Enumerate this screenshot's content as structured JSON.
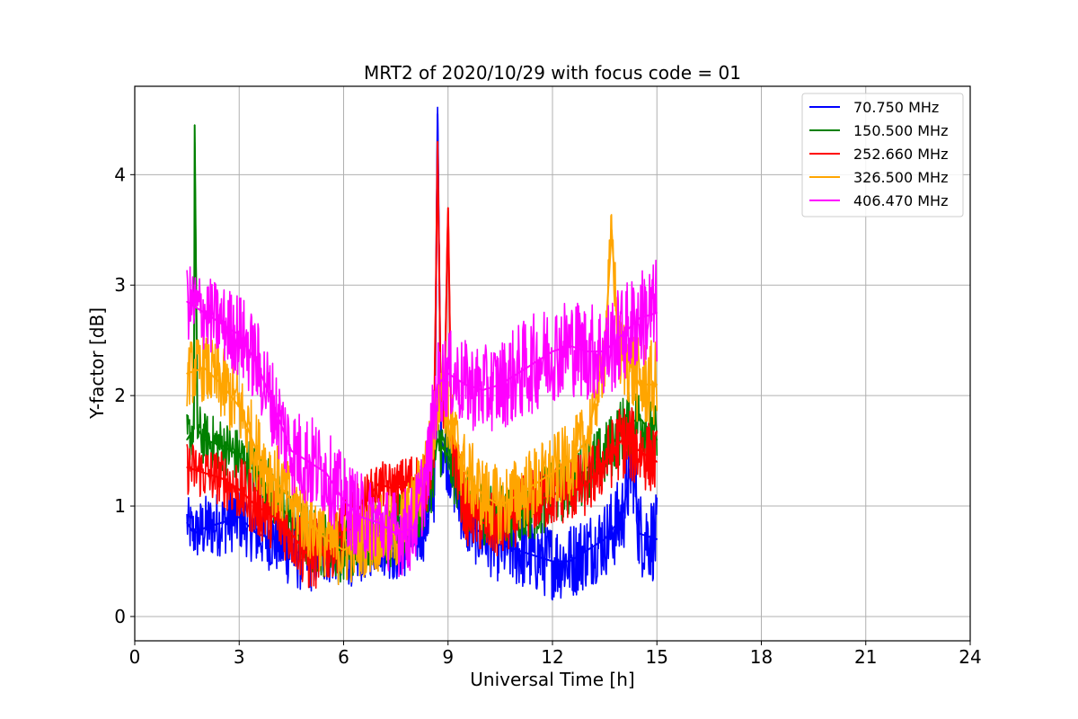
{
  "chart_data": {
    "type": "line",
    "title": "MRT2 of 2020/10/29 with focus code = 01",
    "xlabel": "Universal Time [h]",
    "ylabel": "Y-factor [dB]",
    "xlim": [
      0,
      24
    ],
    "ylim": [
      -0.22,
      4.8
    ],
    "xticks": [
      0,
      3,
      6,
      9,
      12,
      15,
      18,
      21,
      24
    ],
    "yticks": [
      0,
      1,
      2,
      3,
      4
    ],
    "grid": true,
    "legend_position": "top-right",
    "series": [
      {
        "name": "  70.750 MHz",
        "color": "#0000ff",
        "x": [
          1.5,
          1.7,
          2.0,
          2.5,
          3.0,
          3.5,
          4.0,
          4.5,
          5.0,
          5.5,
          6.0,
          6.5,
          7.0,
          7.5,
          8.0,
          8.3,
          8.6,
          8.7,
          8.8,
          9.0,
          9.5,
          10.0,
          10.5,
          11.0,
          11.5,
          12.0,
          12.5,
          13.0,
          13.5,
          14.0,
          14.3,
          14.5,
          15.0
        ],
        "y": [
          0.85,
          0.75,
          0.8,
          0.85,
          0.9,
          0.75,
          0.7,
          0.6,
          0.55,
          0.6,
          0.55,
          0.6,
          0.7,
          0.6,
          0.7,
          0.8,
          1.1,
          4.55,
          1.6,
          1.4,
          0.85,
          0.75,
          0.65,
          0.6,
          0.55,
          0.5,
          0.5,
          0.6,
          0.7,
          0.9,
          1.45,
          0.75,
          0.7
        ],
        "spread": [
          0.25,
          0.25,
          0.3,
          0.3,
          0.3,
          0.3,
          0.3,
          0.35,
          0.35,
          0.3,
          0.3,
          0.3,
          0.3,
          0.3,
          0.3,
          0.3,
          0.3,
          0.1,
          0.3,
          0.3,
          0.3,
          0.35,
          0.35,
          0.35,
          0.35,
          0.35,
          0.35,
          0.35,
          0.35,
          0.4,
          0.45,
          0.4,
          0.4
        ]
      },
      {
        "name": "150.500 MHz",
        "color": "#008000",
        "x": [
          1.5,
          1.7,
          1.72,
          1.8,
          2.0,
          2.5,
          3.0,
          3.5,
          4.0,
          4.5,
          5.0,
          5.5,
          6.0,
          6.5,
          7.0,
          7.5,
          8.0,
          8.5,
          8.7,
          9.0,
          9.5,
          10.0,
          10.5,
          11.0,
          11.5,
          12.0,
          12.5,
          13.0,
          13.5,
          14.0,
          14.5,
          15.0
        ],
        "y": [
          1.6,
          1.7,
          4.45,
          1.7,
          1.6,
          1.55,
          1.45,
          1.3,
          1.1,
          0.85,
          0.7,
          0.65,
          0.6,
          0.7,
          0.8,
          0.75,
          0.85,
          1.2,
          1.6,
          1.45,
          1.05,
          0.95,
          0.9,
          0.95,
          1.0,
          1.1,
          1.2,
          1.35,
          1.45,
          1.7,
          1.8,
          1.6
        ],
        "spread": [
          0.25,
          0.25,
          0.1,
          0.25,
          0.25,
          0.25,
          0.25,
          0.25,
          0.3,
          0.3,
          0.3,
          0.3,
          0.3,
          0.3,
          0.3,
          0.35,
          0.3,
          0.3,
          0.3,
          0.3,
          0.3,
          0.3,
          0.3,
          0.3,
          0.3,
          0.3,
          0.3,
          0.3,
          0.3,
          0.3,
          0.3,
          0.3
        ]
      },
      {
        "name": "252.660 MHz",
        "color": "#ff0000",
        "x": [
          1.5,
          2.0,
          2.5,
          3.0,
          3.5,
          4.0,
          4.5,
          5.0,
          5.5,
          6.0,
          6.5,
          7.0,
          7.5,
          8.0,
          8.4,
          8.6,
          8.7,
          8.8,
          8.9,
          9.0,
          9.1,
          9.5,
          10.0,
          10.5,
          11.0,
          11.5,
          12.0,
          12.5,
          13.0,
          13.5,
          14.0,
          14.5,
          15.0
        ],
        "y": [
          1.35,
          1.3,
          1.25,
          1.15,
          1.0,
          0.9,
          0.75,
          0.55,
          0.6,
          0.75,
          1.0,
          1.2,
          1.15,
          1.25,
          1.2,
          1.6,
          4.3,
          1.8,
          2.0,
          3.7,
          1.6,
          0.95,
          0.85,
          0.8,
          0.95,
          1.05,
          1.1,
          1.15,
          1.2,
          1.4,
          1.6,
          1.5,
          1.4
        ],
        "spread": [
          0.25,
          0.25,
          0.25,
          0.3,
          0.3,
          0.3,
          0.3,
          0.35,
          0.3,
          0.3,
          0.25,
          0.2,
          0.25,
          0.25,
          0.25,
          0.3,
          0.1,
          0.3,
          0.3,
          0.1,
          0.3,
          0.3,
          0.3,
          0.3,
          0.3,
          0.3,
          0.3,
          0.3,
          0.3,
          0.3,
          0.35,
          0.35,
          0.3
        ]
      },
      {
        "name": "326.500 MHz",
        "color": "#ffa500",
        "x": [
          1.5,
          2.0,
          2.5,
          3.0,
          3.5,
          4.0,
          4.5,
          5.0,
          5.5,
          6.0,
          6.5,
          7.0,
          7.5,
          8.0,
          8.5,
          8.8,
          9.0,
          9.5,
          10.0,
          10.5,
          11.0,
          11.5,
          12.0,
          12.5,
          13.0,
          13.5,
          13.7,
          13.9,
          14.2,
          14.5,
          15.0
        ],
        "y": [
          2.2,
          2.25,
          2.1,
          1.9,
          1.5,
          1.25,
          1.05,
          0.85,
          0.7,
          0.6,
          0.7,
          0.75,
          0.75,
          0.95,
          1.5,
          2.2,
          1.8,
          1.3,
          1.1,
          1.0,
          1.1,
          1.2,
          1.3,
          1.4,
          1.6,
          2.4,
          3.5,
          2.4,
          2.3,
          2.1,
          2.1
        ],
        "spread": [
          0.3,
          0.3,
          0.35,
          0.35,
          0.35,
          0.35,
          0.35,
          0.35,
          0.35,
          0.35,
          0.35,
          0.35,
          0.35,
          0.35,
          0.35,
          0.35,
          0.35,
          0.35,
          0.35,
          0.35,
          0.35,
          0.35,
          0.35,
          0.35,
          0.35,
          0.35,
          0.25,
          0.35,
          0.4,
          0.4,
          0.4
        ]
      },
      {
        "name": "406.470 MHz",
        "color": "#ff00ff",
        "x": [
          1.5,
          2.0,
          2.5,
          3.0,
          3.5,
          4.0,
          4.5,
          5.0,
          5.5,
          6.0,
          6.5,
          7.0,
          7.5,
          8.0,
          8.4,
          8.7,
          9.0,
          9.5,
          10.0,
          10.5,
          11.0,
          11.5,
          12.0,
          12.5,
          13.0,
          13.5,
          14.0,
          14.5,
          15.0
        ],
        "y": [
          2.85,
          2.75,
          2.65,
          2.55,
          2.3,
          1.9,
          1.5,
          1.4,
          1.3,
          1.05,
          0.9,
          0.85,
          0.75,
          0.8,
          1.3,
          2.1,
          2.2,
          2.1,
          2.05,
          2.1,
          2.2,
          2.3,
          2.4,
          2.45,
          2.4,
          2.4,
          2.55,
          2.7,
          2.75
        ],
        "spread": [
          0.35,
          0.35,
          0.35,
          0.4,
          0.4,
          0.4,
          0.4,
          0.45,
          0.4,
          0.4,
          0.4,
          0.35,
          0.4,
          0.4,
          0.4,
          0.4,
          0.4,
          0.4,
          0.4,
          0.4,
          0.45,
          0.45,
          0.45,
          0.45,
          0.45,
          0.45,
          0.45,
          0.45,
          0.5
        ]
      }
    ]
  }
}
